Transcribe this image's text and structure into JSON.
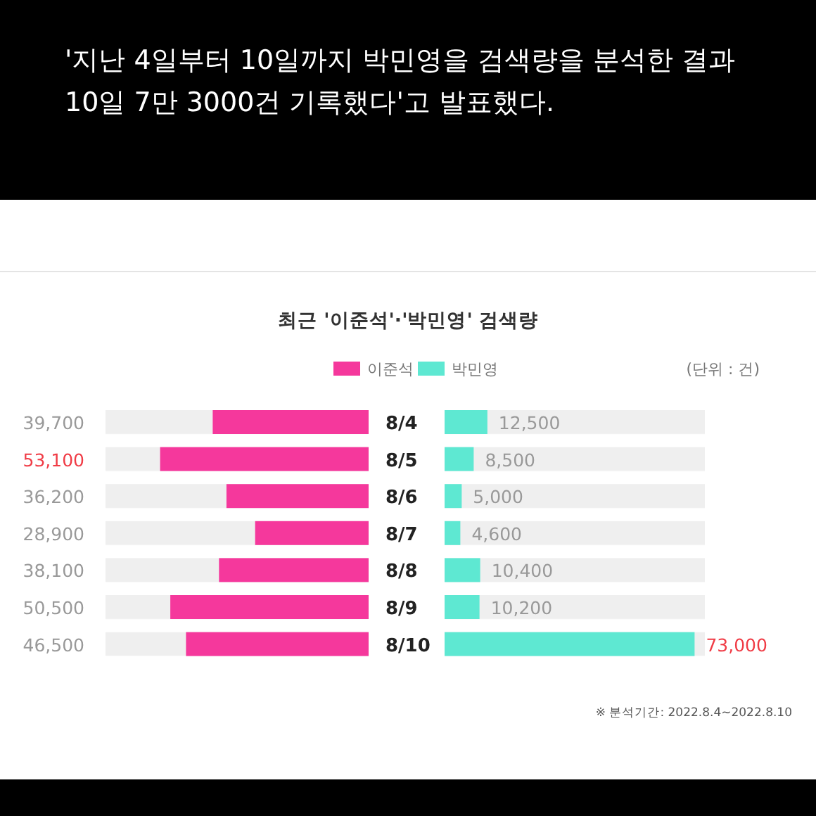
{
  "chart_data": [
    {
      "type": "bar",
      "orientation": "horizontal",
      "title": "최근 '이준석'·'박민영' 검색량",
      "categories": [
        "8/4",
        "8/5",
        "8/6",
        "8/7",
        "8/8",
        "8/9",
        "8/10"
      ],
      "series": [
        {
          "name": "이준석",
          "color": "#f5389c",
          "values": [
            39700,
            53100,
            36200,
            28900,
            38100,
            50500,
            46500
          ],
          "value_labels": [
            "39,700",
            "53,100",
            "36,200",
            "28,900",
            "38,100",
            "50,500",
            "46,500"
          ]
        }
      ],
      "xlim": [
        67000,
        0
      ],
      "tick_labels": "y",
      "legend": "top",
      "annotations": [
        "'지난 4일부터 10일까지 박민영을 검색량을 분석한 결과 10일 7만 3000건 기록했다'고 발표했다.",
        "(단위 : 건)",
        "※ 분석기간: 2022.8.4~2022.8.10"
      ]
    },
    {
      "type": "bar",
      "orientation": "horizontal",
      "categories": [
        null,
        null,
        null,
        null,
        null,
        null,
        null
      ],
      "series": [
        {
          "name": "박민영",
          "color": "#5ee8d2",
          "values": [
            12500,
            8500,
            5000,
            4600,
            10400,
            10200,
            73000
          ],
          "value_labels": [
            "12,500",
            "8,500",
            "5,000",
            "4,600",
            "10,400",
            "10,200",
            "73,000"
          ]
        }
      ],
      "xlim": [
        0,
        76000
      ],
      "legend": "top"
    }
  ]
}
